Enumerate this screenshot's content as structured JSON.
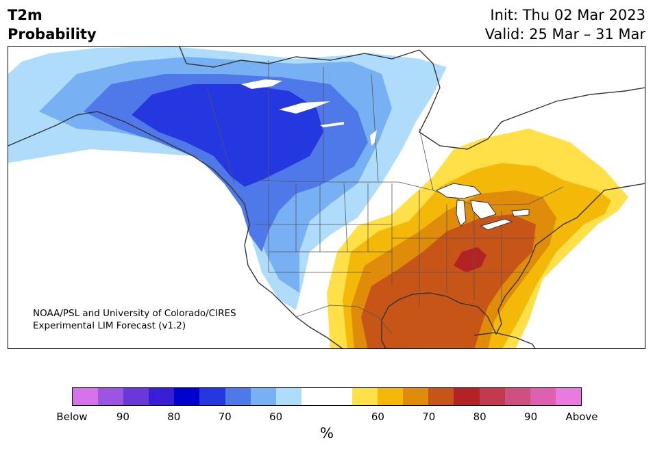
{
  "header": {
    "title_line1": "T2m",
    "title_line2": "Probability",
    "init_text": "Init: Thu 02 Mar 2023",
    "valid_text": "Valid: 25 Mar – 31 Mar"
  },
  "map": {
    "credit_line1": "NOAA/PSL and University of Colorado/CIRES",
    "credit_line2": "Experimental LIM Forecast (v1.2)"
  },
  "colorbar": {
    "unit": "%",
    "colors": [
      "#d673ea",
      "#9c55e3",
      "#6a37d9",
      "#3a1ed6",
      "#0000cf",
      "#2537df",
      "#4f78e8",
      "#78b0f4",
      "#aedcfa",
      "#ffffff",
      "#ffffff",
      "#ffe048",
      "#f4b808",
      "#df8c0a",
      "#c85518",
      "#b32325",
      "#c13a50",
      "#cf5080",
      "#dc62b0",
      "#e97ae0"
    ],
    "tick_labels": [
      "Below",
      "90",
      "80",
      "70",
      "60",
      "60",
      "70",
      "80",
      "90",
      "Above"
    ]
  },
  "palette": {
    "land_outline": "#333333",
    "state_line": "#555555",
    "cold_1": "#aedcfa",
    "cold_2": "#78b0f4",
    "cold_3": "#4f78e8",
    "cold_4": "#2537df",
    "warm_1": "#ffe048",
    "warm_2": "#f4b808",
    "warm_3": "#df8c0a",
    "warm_4": "#c85518",
    "warm_5": "#b32325"
  }
}
